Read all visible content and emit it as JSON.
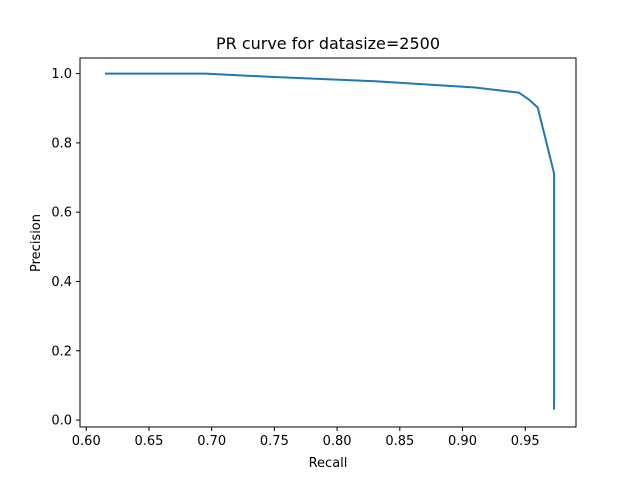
{
  "chart_data": {
    "type": "line",
    "title": "PR curve for datasize=2500",
    "xlabel": "Recall",
    "ylabel": "Precision",
    "xlim": [
      0.595,
      0.9905
    ],
    "ylim": [
      -0.02,
      1.045
    ],
    "xticks": [
      0.6,
      0.65,
      0.7,
      0.75,
      0.8,
      0.85,
      0.9,
      0.95
    ],
    "xtick_labels": [
      "0.60",
      "0.65",
      "0.70",
      "0.75",
      "0.80",
      "0.85",
      "0.90",
      "0.95"
    ],
    "yticks": [
      0.0,
      0.2,
      0.4,
      0.6,
      0.8,
      1.0
    ],
    "ytick_labels": [
      "0.0",
      "0.2",
      "0.4",
      "0.6",
      "0.8",
      "1.0"
    ],
    "grid": false,
    "series": [
      {
        "color": "#1f77b4",
        "x": [
          0.615,
          0.695,
          0.75,
          0.83,
          0.91,
          0.945,
          0.953,
          0.96,
          0.973,
          0.973,
          0.973
        ],
        "y": [
          1.0,
          1.0,
          0.99,
          0.978,
          0.96,
          0.945,
          0.925,
          0.902,
          0.712,
          0.3,
          0.03
        ]
      }
    ]
  }
}
